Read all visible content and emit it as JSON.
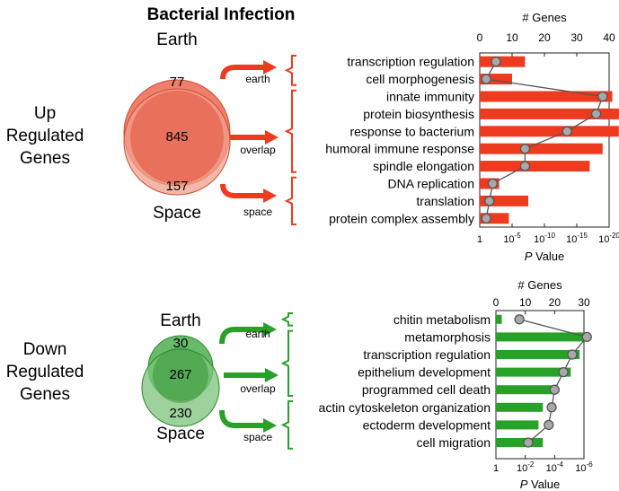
{
  "title": "Bacterial Infection",
  "colors": {
    "up": "#ee3a1f",
    "up_venn": "#e8604a",
    "down": "#27a127",
    "down_venn": "#3f9f3f",
    "line": "#555555",
    "marker": "#a8a8a8"
  },
  "panels": [
    {
      "id": "up",
      "row_label": [
        "Up",
        "Regulated",
        "Genes"
      ],
      "venn": {
        "top_label": "Earth",
        "bottom_label": "Space",
        "earth_only": "77",
        "overlap": "845",
        "space_only": "157"
      },
      "arrows": [
        "earth",
        "overlap",
        "space"
      ]
    },
    {
      "id": "down",
      "row_label": [
        "Down",
        "Regulated",
        "Genes"
      ],
      "venn": {
        "top_label": "Earth",
        "bottom_label": "Space",
        "earth_only": "30",
        "overlap": "267",
        "space_only": "230"
      },
      "arrows": [
        "earth",
        "overlap",
        "space"
      ]
    }
  ],
  "chart_data": [
    {
      "type": "bar",
      "top_axis_label": "# Genes",
      "top_ticks": [
        0,
        10,
        20,
        30,
        40
      ],
      "bottom_axis_label": "P Value",
      "bottom_tick_labels": [
        "1",
        "10-5",
        "10-10",
        "10-15",
        "10-20"
      ],
      "bottom_axis_scale": "-log10",
      "categories": [
        "transcription regulation",
        "cell morphogenesis",
        "innate immunity",
        "protein biosynthesis",
        "response to bacterium",
        "humoral immune response",
        "spindle elongation",
        "DNA replication",
        "translation",
        "protein complex assembly"
      ],
      "neg_log10_p": [
        7,
        5,
        20.5,
        23,
        21.5,
        19,
        17,
        3,
        7.5,
        4.5
      ],
      "gene_counts": [
        5,
        2,
        38,
        36,
        27,
        14,
        14,
        4,
        3,
        2
      ],
      "groups": [
        {
          "arrow": "earth",
          "start": 0,
          "end": 1
        },
        {
          "arrow": "overlap",
          "start": 2,
          "end": 6
        },
        {
          "arrow": "space",
          "start": 7,
          "end": 9
        }
      ]
    },
    {
      "type": "bar",
      "top_axis_label": "# Genes",
      "top_ticks": [
        0,
        10,
        20,
        30
      ],
      "bottom_axis_label": "P Value",
      "bottom_tick_labels": [
        "1",
        "10-2",
        "10-4",
        "10-6"
      ],
      "bottom_axis_scale": "-log10",
      "categories": [
        "chitin metabolism",
        "metamorphosis",
        "transcription regulation",
        "epithelium development",
        "programmed cell death",
        "actin cytoskeleton organization",
        "ectoderm development",
        "cell migration"
      ],
      "neg_log10_p": [
        0.4,
        6.2,
        5.7,
        5.1,
        4.0,
        3.2,
        2.9,
        3.2
      ],
      "gene_counts": [
        8,
        31,
        26,
        23,
        20,
        19,
        18,
        11
      ],
      "groups": [
        {
          "arrow": "earth",
          "start": 0,
          "end": 0
        },
        {
          "arrow": "overlap",
          "start": 1,
          "end": 4
        },
        {
          "arrow": "space",
          "start": 5,
          "end": 7
        }
      ]
    }
  ]
}
